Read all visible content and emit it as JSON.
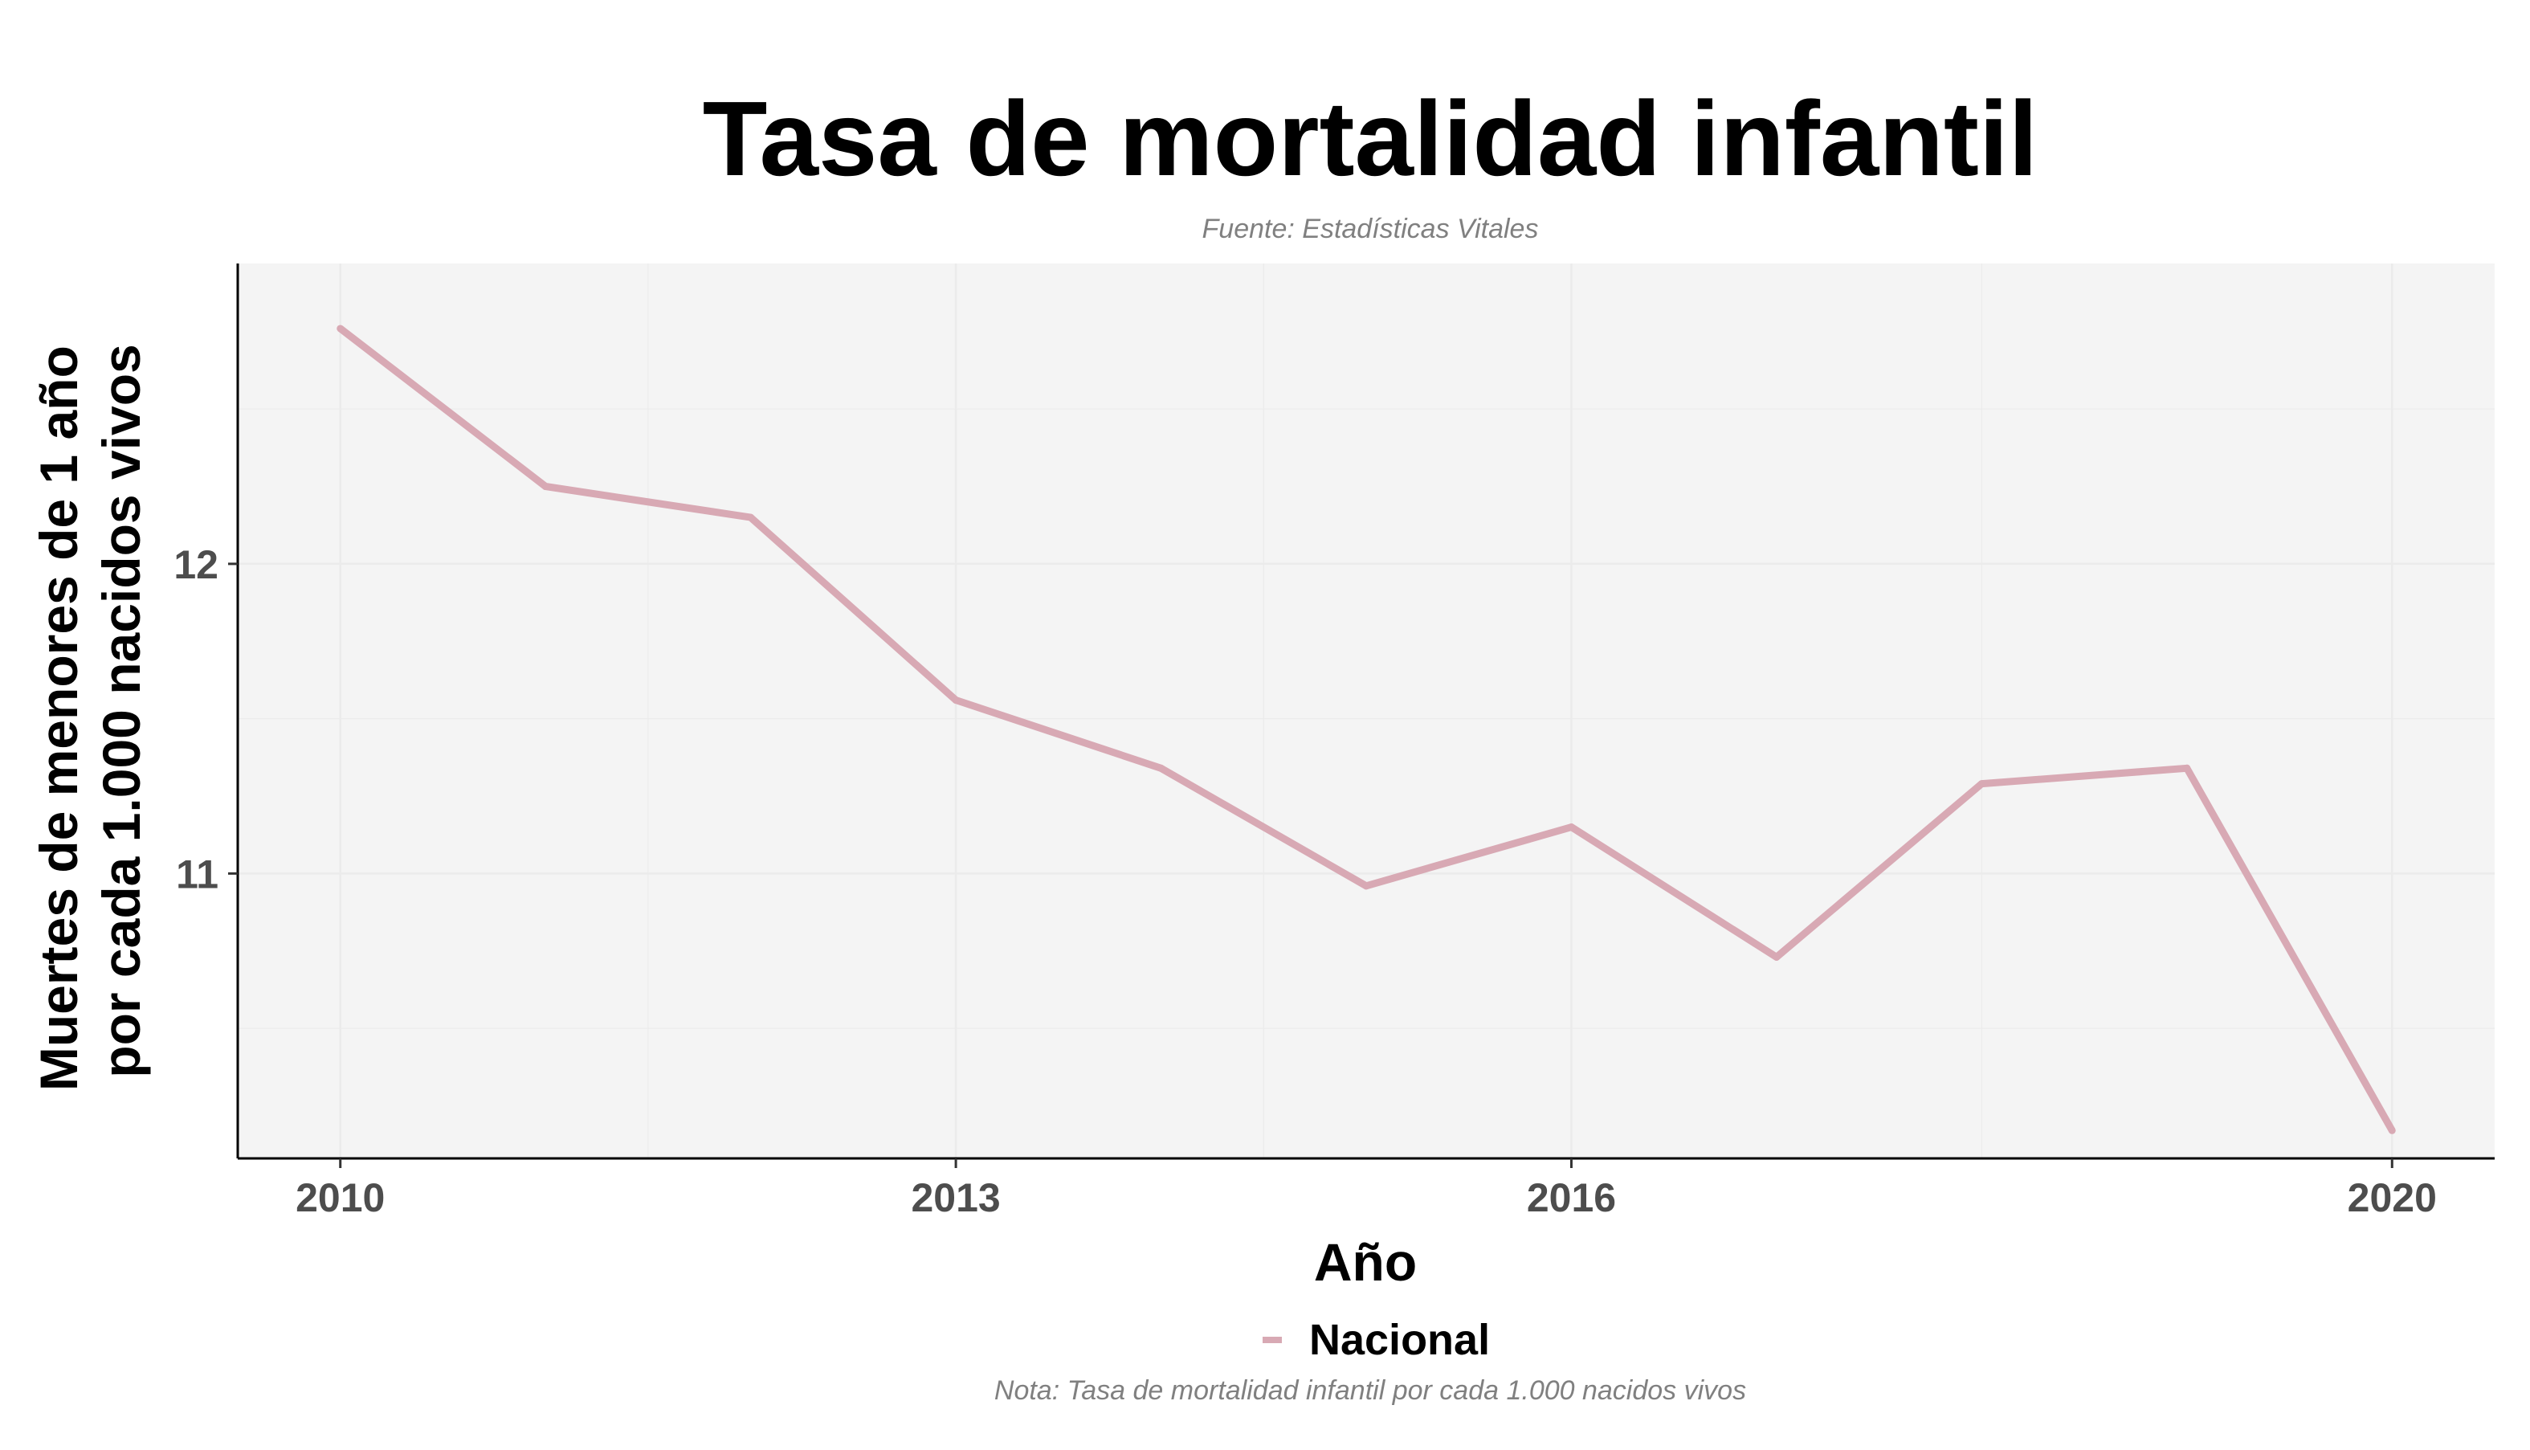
{
  "chart_data": {
    "type": "line",
    "title": "Tasa de mortalidad infantil",
    "subtitle": "Fuente: Estadísticas Vitales",
    "xlabel": "Año",
    "ylabel_lines": [
      "Muertes de menores de 1 año",
      "por cada 1.000 nacidos vivos"
    ],
    "note": "Nota: Tasa de mortalidad infantil por cada 1.000 nacidos vivos",
    "x_ticks": [
      "2010",
      "2013",
      "2016",
      "2020"
    ],
    "y_ticks": [
      "11",
      "12"
    ],
    "xlim": [
      2009.5,
      2020.5
    ],
    "ylim": [
      10.08,
      12.97
    ],
    "grid": true,
    "legend_position": "bottom",
    "series": [
      {
        "name": "Nacional",
        "color": "#d8a9b4",
        "x": [
          2010,
          2011,
          2012,
          2013,
          2014,
          2015,
          2016,
          2017,
          2018,
          2019,
          2020
        ],
        "y": [
          12.76,
          12.25,
          12.15,
          11.56,
          11.34,
          10.96,
          11.15,
          10.73,
          11.29,
          11.34,
          10.17
        ]
      }
    ]
  },
  "colors": {
    "panel_background": "#f4f4f4",
    "grid": "#ebebeb",
    "axis_line": "#000000"
  }
}
